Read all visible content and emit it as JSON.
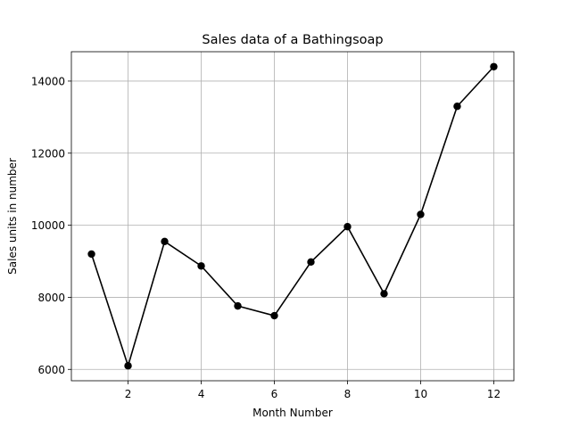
{
  "chart_data": {
    "type": "line",
    "title": "Sales data of a Bathingsoap",
    "xlabel": "Month Number",
    "ylabel": "Sales units in number",
    "x": [
      1,
      2,
      3,
      4,
      5,
      6,
      7,
      8,
      9,
      10,
      11,
      12
    ],
    "series": [
      {
        "values": [
          9200,
          6100,
          9550,
          8870,
          7760,
          7490,
          8980,
          9960,
          8100,
          10300,
          13300,
          14400
        ],
        "color": "#000000",
        "marker": "circle"
      }
    ],
    "xlim": [
      0.45,
      12.55
    ],
    "ylim": [
      5685,
      14815
    ],
    "xticks": [
      2,
      4,
      6,
      8,
      10,
      12
    ],
    "yticks": [
      6000,
      8000,
      10000,
      12000,
      14000
    ],
    "grid": true,
    "legend": "none"
  }
}
